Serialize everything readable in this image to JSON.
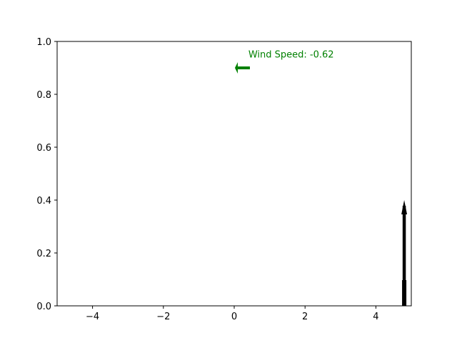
{
  "chart_data": {
    "type": "scatter",
    "xlim": [
      -5,
      5
    ],
    "ylim": [
      0,
      1
    ],
    "x_ticks": [
      -4,
      -2,
      0,
      2,
      4
    ],
    "x_tick_labels": [
      "−4",
      "−2",
      "0",
      "2",
      "4"
    ],
    "y_ticks": [
      0.0,
      0.2,
      0.4,
      0.6,
      0.8,
      1.0
    ],
    "y_tick_labels": [
      "0.0",
      "0.2",
      "0.4",
      "0.6",
      "0.8",
      "1.0"
    ],
    "grid": false,
    "legend": "none",
    "title": "",
    "xlabel": "",
    "ylabel": ""
  },
  "wind": {
    "label": "Wind Speed: -0.62",
    "speed": -0.62,
    "indicator_x": 0.1,
    "indicator_y": 0.9,
    "label_x": 0.4,
    "label_y": 0.95,
    "color": "#008000"
  },
  "projectile": {
    "x": 4.8,
    "y_base": 0.0,
    "y_top": 0.4,
    "color": "#000000",
    "icon": "upward-arrow-icon"
  }
}
